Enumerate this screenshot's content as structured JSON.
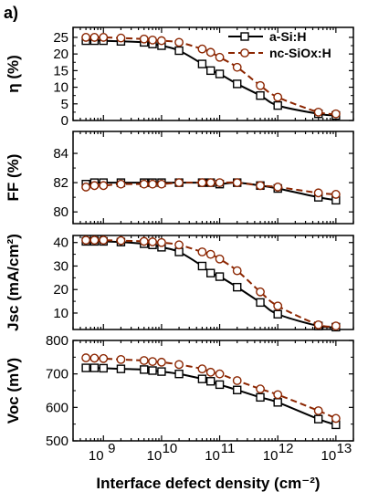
{
  "figure": {
    "panel_tag": "a)",
    "x_axis_label": "Interface defect density (cm⁻²)",
    "legend": [
      {
        "label": "a-Si:H",
        "color": "#000000",
        "marker": "square",
        "line": "solid"
      },
      {
        "label": "nc-SiOx:H",
        "color": "#8b2500",
        "marker": "circle",
        "line": "dashed"
      }
    ]
  },
  "chart_data": [
    {
      "type": "line",
      "ylabel": "η (%)",
      "x_scale": "log",
      "xlim": [
        300000000.0,
        20000000000000.0
      ],
      "ylim": [
        0,
        28
      ],
      "yticks": [
        0,
        5,
        10,
        15,
        20,
        25
      ],
      "x": [
        500000000.0,
        700000000.0,
        1000000000.0,
        2000000000.0,
        5000000000.0,
        7000000000.0,
        10000000000.0,
        20000000000.0,
        50000000000.0,
        70000000000.0,
        100000000000.0,
        200000000000.0,
        500000000000.0,
        1000000000000.0,
        5000000000000.0,
        10000000000000.0
      ],
      "series": [
        {
          "name": "a-Si:H",
          "values": [
            24.0,
            24.0,
            24.0,
            23.8,
            23.5,
            23.0,
            22.5,
            21.0,
            17.0,
            15.0,
            14.0,
            11.0,
            7.5,
            4.5,
            2.0,
            1.5
          ]
        },
        {
          "name": "nc-SiOx:H",
          "values": [
            25.0,
            25.0,
            25.0,
            24.8,
            24.5,
            24.2,
            24.0,
            23.5,
            21.5,
            20.5,
            19.0,
            16.0,
            10.5,
            7.0,
            2.5,
            2.0
          ]
        }
      ]
    },
    {
      "type": "line",
      "ylabel": "FF (%)",
      "x_scale": "log",
      "xlim": [
        300000000.0,
        20000000000000.0
      ],
      "ylim": [
        79.2,
        85.5
      ],
      "yticks": [
        80,
        82,
        84
      ],
      "x": [
        500000000.0,
        700000000.0,
        1000000000.0,
        2000000000.0,
        5000000000.0,
        7000000000.0,
        10000000000.0,
        20000000000.0,
        50000000000.0,
        70000000000.0,
        100000000000.0,
        200000000000.0,
        500000000000.0,
        1000000000000.0,
        5000000000000.0,
        10000000000000.0
      ],
      "series": [
        {
          "name": "a-Si:H",
          "values": [
            81.9,
            82.0,
            82.0,
            82.0,
            82.0,
            82.0,
            82.0,
            82.0,
            82.0,
            82.0,
            81.9,
            82.0,
            81.8,
            81.6,
            81.0,
            80.8
          ]
        },
        {
          "name": "nc-SiOx:H",
          "values": [
            81.7,
            81.8,
            81.8,
            81.9,
            81.9,
            81.9,
            81.9,
            82.0,
            82.0,
            82.0,
            82.0,
            82.0,
            81.8,
            81.7,
            81.3,
            81.2
          ]
        }
      ]
    },
    {
      "type": "line",
      "ylabel": "Jsc (mA/cm²)",
      "x_scale": "log",
      "xlim": [
        300000000.0,
        20000000000000.0
      ],
      "ylim": [
        3,
        43
      ],
      "yticks": [
        10,
        20,
        30,
        40
      ],
      "x": [
        500000000.0,
        700000000.0,
        1000000000.0,
        2000000000.0,
        5000000000.0,
        7000000000.0,
        10000000000.0,
        20000000000.0,
        50000000000.0,
        70000000000.0,
        100000000000.0,
        200000000000.0,
        500000000000.0,
        1000000000000.0,
        5000000000000.0,
        10000000000000.0
      ],
      "series": [
        {
          "name": "a-Si:H",
          "values": [
            40.5,
            40.5,
            40.5,
            40.2,
            39.5,
            39.0,
            38.0,
            36.0,
            30.0,
            27.0,
            25.5,
            21.0,
            14.5,
            9.5,
            4.5,
            4.0
          ]
        },
        {
          "name": "nc-SiOx:H",
          "values": [
            41.0,
            41.0,
            41.0,
            40.8,
            40.5,
            40.3,
            40.0,
            39.0,
            36.0,
            35.0,
            33.0,
            28.0,
            19.0,
            13.0,
            5.0,
            4.5
          ]
        }
      ]
    },
    {
      "type": "line",
      "ylabel": "Voc (mV)",
      "x_scale": "log",
      "xlim": [
        300000000.0,
        20000000000000.0
      ],
      "ylim": [
        500,
        800
      ],
      "yticks": [
        500,
        600,
        700,
        800
      ],
      "x": [
        500000000.0,
        700000000.0,
        1000000000.0,
        2000000000.0,
        5000000000.0,
        7000000000.0,
        10000000000.0,
        20000000000.0,
        50000000000.0,
        70000000000.0,
        100000000000.0,
        200000000000.0,
        500000000000.0,
        1000000000000.0,
        5000000000000.0,
        10000000000000.0
      ],
      "series": [
        {
          "name": "a-Si:H",
          "values": [
            718,
            718,
            717,
            715,
            713,
            710,
            707,
            700,
            685,
            678,
            668,
            652,
            630,
            615,
            565,
            548
          ]
        },
        {
          "name": "nc-SiOx:H",
          "values": [
            748,
            747,
            746,
            743,
            740,
            737,
            735,
            728,
            715,
            705,
            700,
            680,
            655,
            638,
            590,
            567
          ]
        }
      ]
    }
  ]
}
